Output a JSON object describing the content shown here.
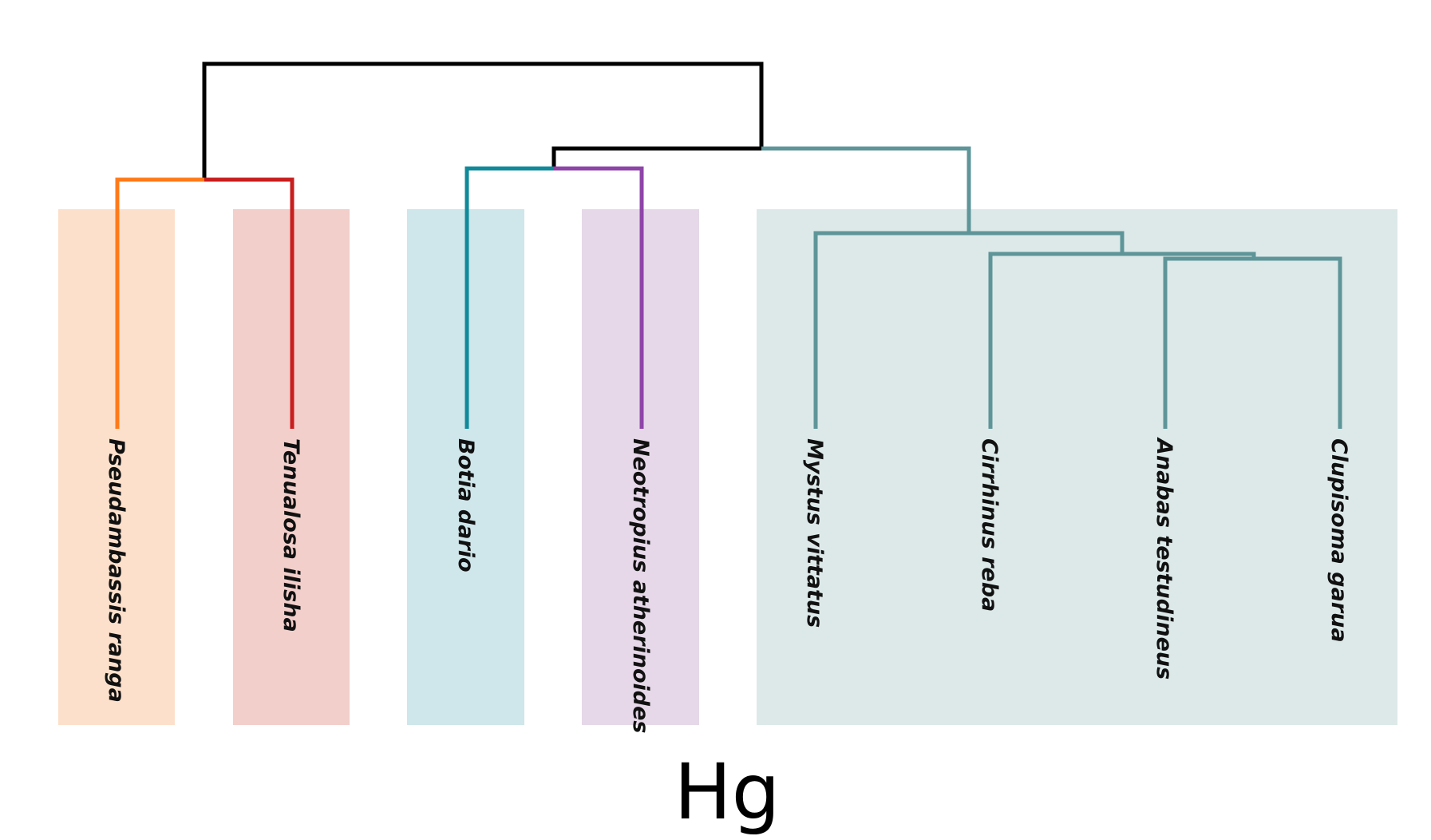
{
  "caption": "Hg",
  "colors": {
    "root": "#000000",
    "pseudambassis": "#ff7a1a",
    "tenualosa": "#c81e1e",
    "botia": "#0f8a9a",
    "neotropius": "#8e44a8",
    "large_clade": "#5e9599"
  },
  "groups": [
    {
      "id": "group-1",
      "color": "#fde0cb"
    },
    {
      "id": "group-2",
      "color": "#f2cfcb"
    },
    {
      "id": "group-3",
      "color": "#cfe6ea"
    },
    {
      "id": "group-4",
      "color": "#e6d8e8"
    },
    {
      "id": "group-5",
      "color": "#dde9e9"
    }
  ],
  "leaves": [
    {
      "id": "pseudambassis-ranga",
      "label": "Pseudambassis ranga",
      "color": "#ff7a1a"
    },
    {
      "id": "tenualosa-ilisha",
      "label": "Tenualosa ilisha",
      "color": "#c81e1e"
    },
    {
      "id": "botia-dario",
      "label": "Botia dario",
      "color": "#0f8a9a"
    },
    {
      "id": "neotropius-atherinoides",
      "label": "Neotropius atherinoides",
      "color": "#8e44a8"
    },
    {
      "id": "mystus-vittatus",
      "label": "Mystus vittatus",
      "color": "#5e9599"
    },
    {
      "id": "cirrhinus-reba",
      "label": "Cirrhinus reba",
      "color": "#5e9599"
    },
    {
      "id": "anabas-testudineus",
      "label": "Anabas testudineus",
      "color": "#5e9599"
    },
    {
      "id": "clupisoma-garua",
      "label": "Clupisoma garua",
      "color": "#5e9599"
    }
  ]
}
